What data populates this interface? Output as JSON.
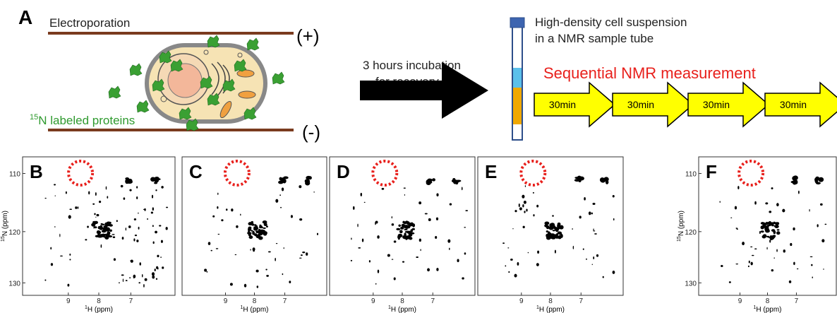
{
  "panel_a": {
    "label": "A",
    "electroporation": "Electroporation",
    "plus": "(+)",
    "minus": "(-)",
    "protein_label": {
      "sup": "15",
      "text": "N labeled proteins"
    },
    "incubation": [
      "3 hours incubation",
      "for recovery"
    ],
    "tube_label": [
      "High-density cell suspension",
      "in a NMR sample tube"
    ],
    "sequence_title": "Sequential NMR measurement",
    "steps": [
      "30min",
      "30min",
      "30min",
      "30min"
    ]
  },
  "panels": [
    {
      "label": "B",
      "x_ticks": [
        9,
        8,
        7
      ],
      "x_axis": {
        "sup": "1",
        "text": "H (ppm)"
      },
      "y_ticks": [
        110,
        120,
        130
      ],
      "y_axis": {
        "sup": "15",
        "text": "N (ppm)"
      }
    },
    {
      "label": "C",
      "x_ticks": [
        9,
        8,
        7
      ],
      "x_axis": {
        "sup": "1",
        "text": "H (ppm)"
      }
    },
    {
      "label": "D",
      "x_ticks": [
        9,
        8,
        7
      ],
      "x_axis": {
        "sup": "1",
        "text": "H (ppm)"
      }
    },
    {
      "label": "E",
      "x_ticks": [
        9,
        8,
        7
      ],
      "x_axis": {
        "sup": "1",
        "text": "H (ppm)"
      }
    },
    {
      "label": "F",
      "x_ticks": [
        9,
        8,
        7
      ],
      "x_axis": {
        "sup": "1",
        "text": "H (ppm)"
      },
      "y_ticks": [
        110,
        120,
        130
      ],
      "y_axis": {
        "sup": "15",
        "text": "N (ppm)"
      }
    }
  ]
}
